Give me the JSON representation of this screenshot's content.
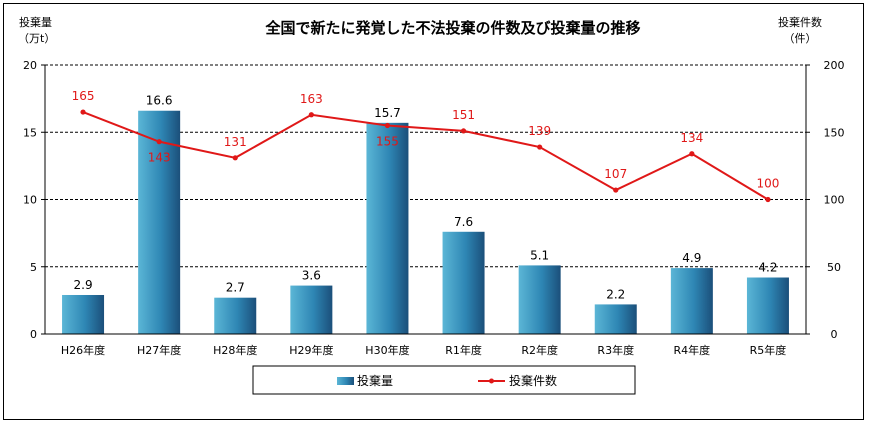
{
  "chart_data": {
    "type": "bar+line",
    "title": "全国で新たに発覚した不法投棄の件数及び投棄量の推移",
    "categories": [
      "H26年度",
      "H27年度",
      "H28年度",
      "H29年度",
      "H30年度",
      "R1年度",
      "R2年度",
      "R3年度",
      "R4年度",
      "R5年度"
    ],
    "left_axis": {
      "label_line1": "投棄量",
      "label_line2": "（万t）",
      "ylim": [
        0,
        20
      ],
      "ticks": [
        "0",
        "5",
        "10",
        "15",
        "20"
      ]
    },
    "right_axis": {
      "label_line1": "投棄件数",
      "label_line2": "（件）",
      "ylim": [
        0,
        200
      ],
      "ticks": [
        "0",
        "50",
        "100",
        "150",
        "200"
      ]
    },
    "series": [
      {
        "name": "投棄量",
        "type": "bar",
        "axis": "left",
        "values": [
          2.9,
          16.6,
          2.7,
          3.6,
          15.7,
          7.6,
          5.1,
          2.2,
          4.9,
          4.2
        ],
        "labels": [
          "2.9",
          "16.6",
          "2.7",
          "3.6",
          "15.7",
          "7.6",
          "5.1",
          "2.2",
          "4.9",
          "4.2"
        ],
        "color": "#3a8fb5"
      },
      {
        "name": "投棄件数",
        "type": "line",
        "axis": "right",
        "values": [
          165,
          143,
          131,
          163,
          155,
          151,
          139,
          107,
          134,
          100
        ],
        "labels": [
          "165",
          "143",
          "131",
          "163",
          "155",
          "151",
          "139",
          "107",
          "134",
          "100"
        ],
        "color": "#e01818"
      }
    ],
    "gridlines": "dashed-horizontal",
    "legend": "bottom-center"
  }
}
